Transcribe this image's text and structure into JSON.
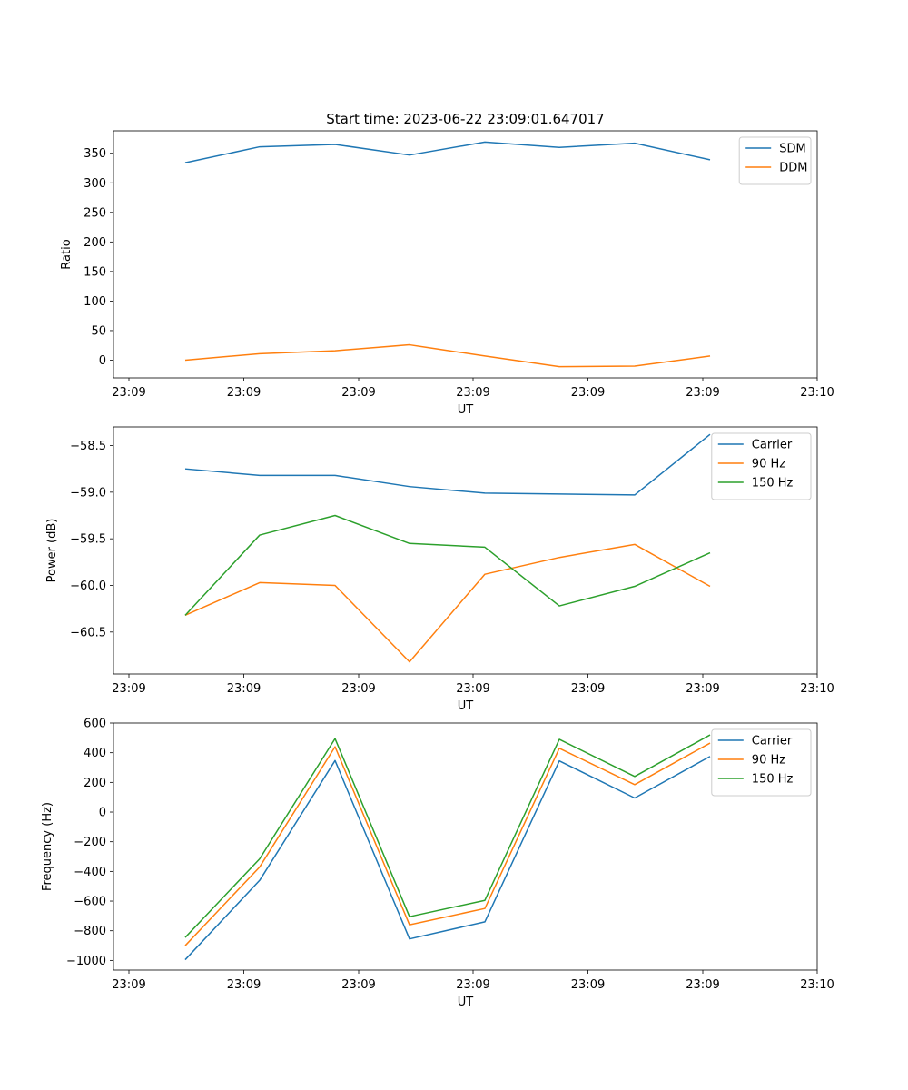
{
  "figure": {
    "title": "Start time: 2023-06-22 23:09:01.647017"
  },
  "chart_data": [
    {
      "type": "line",
      "xlabel": "UT",
      "ylabel": "Ratio",
      "x_tick_labels": [
        "23:09",
        "23:09",
        "23:09",
        "23:09",
        "23:09",
        "23:09",
        "23:10"
      ],
      "y_ticks": [
        0,
        50,
        100,
        150,
        200,
        250,
        300,
        350
      ],
      "ylim": [
        -30,
        388
      ],
      "legend_position": "top-right",
      "grid": false,
      "series": [
        {
          "name": "SDM",
          "color": "#1f77b4",
          "values": [
            334,
            361,
            365,
            347,
            369,
            360,
            367,
            339
          ]
        },
        {
          "name": "DDM",
          "color": "#ff7f0e",
          "values": [
            0,
            11,
            16,
            26,
            7,
            -11,
            -10,
            7
          ]
        }
      ]
    },
    {
      "type": "line",
      "xlabel": "UT",
      "ylabel": "Power (dB)",
      "x_tick_labels": [
        "23:09",
        "23:09",
        "23:09",
        "23:09",
        "23:09",
        "23:09",
        "23:10"
      ],
      "y_ticks": [
        -60.5,
        -60.0,
        -59.5,
        -59.0,
        -58.5
      ],
      "y_tick_labels": [
        "−60.5",
        "−60.0",
        "−59.5",
        "−59.0",
        "−58.5"
      ],
      "ylim": [
        -60.95,
        -58.3
      ],
      "legend_position": "top-right",
      "grid": false,
      "series": [
        {
          "name": "Carrier",
          "color": "#1f77b4",
          "values": [
            -58.75,
            -58.82,
            -58.82,
            -58.94,
            -59.01,
            -59.02,
            -59.03,
            -58.38
          ]
        },
        {
          "name": "90 Hz",
          "color": "#ff7f0e",
          "values": [
            -60.32,
            -59.97,
            -60.0,
            -60.82,
            -59.88,
            -59.7,
            -59.56,
            -60.01
          ]
        },
        {
          "name": "150 Hz",
          "color": "#2ca02c",
          "values": [
            -60.32,
            -59.46,
            -59.25,
            -59.55,
            -59.59,
            -60.22,
            -60.01,
            -59.65
          ]
        }
      ]
    },
    {
      "type": "line",
      "xlabel": "UT",
      "ylabel": "Frequency (Hz)",
      "x_tick_labels": [
        "23:09",
        "23:09",
        "23:09",
        "23:09",
        "23:09",
        "23:09",
        "23:10"
      ],
      "y_ticks": [
        -1000,
        -800,
        -600,
        -400,
        -200,
        0,
        200,
        400,
        600
      ],
      "y_tick_labels": [
        "−1000",
        "−800",
        "−600",
        "−400",
        "−200",
        "0",
        "200",
        "400",
        "600"
      ],
      "ylim": [
        -1065,
        600
      ],
      "legend_position": "top-right",
      "grid": false,
      "series": [
        {
          "name": "Carrier",
          "color": "#1f77b4",
          "values": [
            -995,
            -460,
            347,
            -855,
            -740,
            345,
            95,
            375
          ]
        },
        {
          "name": "90 Hz",
          "color": "#ff7f0e",
          "values": [
            -900,
            -370,
            440,
            -760,
            -650,
            430,
            185,
            465
          ]
        },
        {
          "name": "150 Hz",
          "color": "#2ca02c",
          "values": [
            -845,
            -315,
            495,
            -705,
            -595,
            490,
            240,
            520
          ]
        }
      ]
    }
  ]
}
